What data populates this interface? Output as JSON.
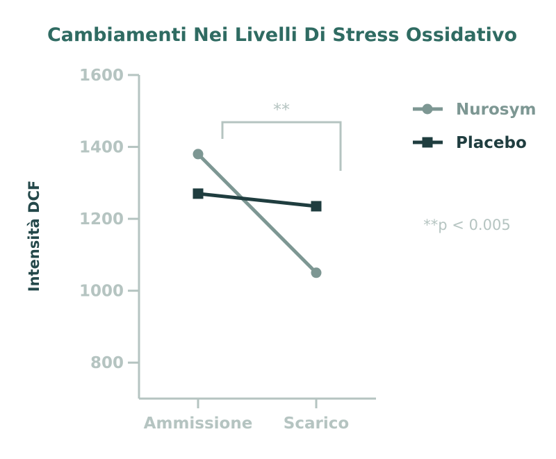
{
  "chart_data": {
    "type": "line",
    "title": "Cambiamenti Nei Livelli Di Stress Ossidativo",
    "xlabel": "",
    "ylabel": "Intensità DCF",
    "categories": [
      "Ammissione",
      "Scarico"
    ],
    "ylim": [
      700,
      1600
    ],
    "yticks": [
      "800",
      "1000",
      "1200",
      "1400",
      "1600"
    ],
    "series": [
      {
        "name": "Nurosym",
        "values": [
          1380,
          1050
        ],
        "color": "#7d9793",
        "marker": "circle"
      },
      {
        "name": "Placebo",
        "values": [
          1270,
          1235
        ],
        "color": "#1f3d3f",
        "marker": "square"
      }
    ],
    "annotations": {
      "significance": "**",
      "note": "**p < 0.005"
    },
    "legend": "top-right",
    "grid": false
  }
}
